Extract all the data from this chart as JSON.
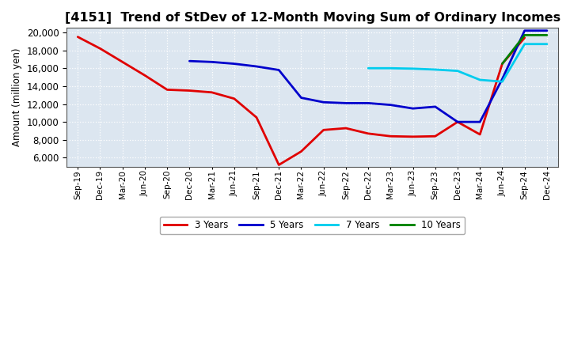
{
  "title": "[4151]  Trend of StDev of 12-Month Moving Sum of Ordinary Incomes",
  "ylabel": "Amount (million yen)",
  "background_color": "#ffffff",
  "plot_background_color": "#dce6f0",
  "grid_color": "#ffffff",
  "title_fontsize": 11.5,
  "xlabel_fontsize": 7.5,
  "ylabel_fontsize": 8.5,
  "ylim": [
    5000,
    20500
  ],
  "yticks": [
    6000,
    8000,
    10000,
    12000,
    14000,
    16000,
    18000,
    20000
  ],
  "x_labels": [
    "Sep-19",
    "Dec-19",
    "Mar-20",
    "Jun-20",
    "Sep-20",
    "Dec-20",
    "Mar-21",
    "Jun-21",
    "Sep-21",
    "Dec-21",
    "Mar-22",
    "Jun-22",
    "Sep-22",
    "Dec-22",
    "Mar-23",
    "Jun-23",
    "Sep-23",
    "Dec-23",
    "Mar-24",
    "Jun-24",
    "Sep-24",
    "Dec-24"
  ],
  "series_3y": {
    "color": "#e00000",
    "linewidth": 2.0,
    "x": [
      0,
      1,
      2,
      3,
      4,
      5,
      6,
      7,
      8,
      9,
      10,
      11,
      12,
      13,
      14,
      15,
      16,
      17,
      18,
      19,
      20
    ],
    "y": [
      19500,
      18200,
      16700,
      15200,
      13600,
      13500,
      13300,
      12600,
      10500,
      5200,
      6700,
      9100,
      9300,
      8700,
      8400,
      8350,
      8400,
      10000,
      8600,
      16500,
      19400
    ]
  },
  "series_5y": {
    "color": "#0000cc",
    "linewidth": 2.0,
    "x": [
      5,
      6,
      7,
      8,
      9,
      10,
      11,
      12,
      13,
      14,
      15,
      16,
      17,
      18,
      19,
      20,
      21
    ],
    "y": [
      16800,
      16700,
      16500,
      16200,
      15800,
      12700,
      12200,
      12100,
      12100,
      11900,
      11500,
      11700,
      10000,
      10000,
      14800,
      20200,
      20200
    ]
  },
  "series_7y": {
    "color": "#00ccee",
    "linewidth": 2.0,
    "x": [
      13,
      14,
      15,
      16,
      17,
      18,
      19,
      20,
      21
    ],
    "y": [
      16000,
      16000,
      15950,
      15850,
      15700,
      14700,
      14500,
      18700,
      18700
    ]
  },
  "series_10y": {
    "color": "#008000",
    "linewidth": 2.0,
    "x": [
      19,
      20,
      21
    ],
    "y": [
      16500,
      19700,
      19700
    ]
  },
  "legend_colors": {
    "3 Years": "#e00000",
    "5 Years": "#0000cc",
    "7 Years": "#00ccee",
    "10 Years": "#008000"
  }
}
